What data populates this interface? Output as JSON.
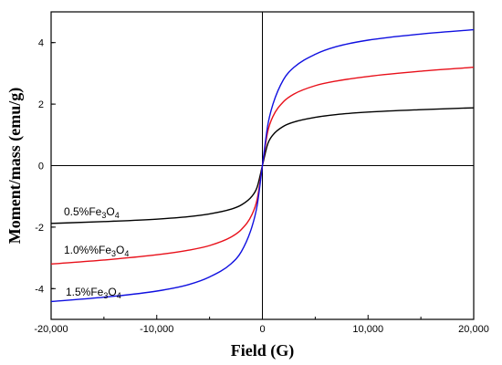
{
  "chart_data": {
    "type": "line",
    "xlabel": "Field (G)",
    "ylabel": "Moment/mass (emu/g)",
    "xlim": [
      -20000,
      20000
    ],
    "ylim": [
      -5,
      5
    ],
    "x_ticks": [
      -20000,
      -10000,
      0,
      10000,
      20000
    ],
    "x_tick_labels": [
      "-20,000",
      "-10,000",
      "0",
      "10,000",
      "20,000"
    ],
    "y_ticks": [
      -4,
      -2,
      0,
      2,
      4
    ],
    "y_tick_labels": [
      "-4",
      "-2",
      "0",
      "2",
      "4"
    ],
    "grid": false,
    "zero_lines": true,
    "series": [
      {
        "color": "#000000",
        "label": {
          "prefix": "0.5%Fe",
          "sub1": "3",
          "mid": "O",
          "sub2": "4"
        },
        "x": [
          -20000,
          -15000,
          -10000,
          -7000,
          -5000,
          -3000,
          -2000,
          -1000,
          -500,
          0,
          500,
          1000,
          2000,
          3000,
          5000,
          7000,
          10000,
          15000,
          20000
        ],
        "y": [
          -1.88,
          -1.82,
          -1.74,
          -1.66,
          -1.57,
          -1.42,
          -1.28,
          -1.0,
          -0.7,
          0,
          0.7,
          1.0,
          1.28,
          1.42,
          1.57,
          1.66,
          1.74,
          1.82,
          1.88
        ]
      },
      {
        "color": "#e8101a",
        "label": {
          "prefix": "1.0%%Fe",
          "sub1": "3",
          "mid": "O",
          "sub2": "4"
        },
        "x": [
          -20000,
          -15000,
          -10000,
          -7000,
          -5000,
          -3000,
          -2000,
          -1000,
          -500,
          0,
          500,
          1000,
          2000,
          3000,
          5000,
          7000,
          10000,
          15000,
          20000
        ],
        "y": [
          -3.2,
          -3.07,
          -2.9,
          -2.75,
          -2.6,
          -2.33,
          -2.08,
          -1.6,
          -1.1,
          0,
          1.1,
          1.6,
          2.08,
          2.33,
          2.6,
          2.75,
          2.9,
          3.07,
          3.2
        ]
      },
      {
        "color": "#1010e0",
        "label": {
          "prefix": "1.5%Fe",
          "sub1": "3",
          "mid": "O",
          "sub2": "4"
        },
        "x": [
          -20000,
          -15000,
          -10000,
          -7000,
          -5000,
          -3000,
          -2000,
          -1000,
          -500,
          0,
          500,
          1000,
          2000,
          3000,
          5000,
          7000,
          10000,
          15000,
          20000
        ],
        "y": [
          -4.42,
          -4.28,
          -4.08,
          -3.87,
          -3.62,
          -3.2,
          -2.8,
          -2.0,
          -1.3,
          0,
          1.3,
          2.0,
          2.8,
          3.2,
          3.62,
          3.87,
          4.08,
          4.28,
          4.42
        ]
      }
    ]
  }
}
